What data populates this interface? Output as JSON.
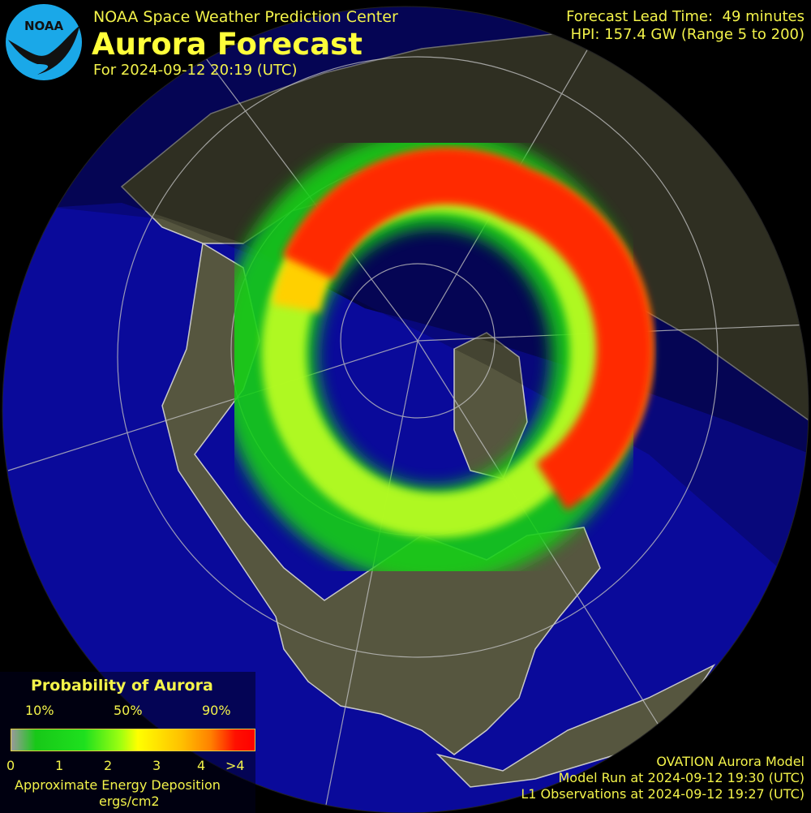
{
  "header": {
    "organization": "NOAA Space Weather Prediction Center",
    "title": "Aurora Forecast",
    "forecast_for": "For 2024-09-12 20:19 (UTC)",
    "logo_text": "NOAA",
    "lead_time": "Forecast Lead Time:  49 minutes",
    "hpi": "HPI: 157.4 GW (Range 5 to 200)"
  },
  "legend": {
    "title": "Probability of Aurora",
    "percent_labels": [
      "10%",
      "50%",
      "90%"
    ],
    "energy_ticks": [
      "0",
      "1",
      "2",
      "3",
      "4",
      ">4"
    ],
    "energy_label": "Approximate Energy Deposition",
    "energy_units": "ergs/cm2"
  },
  "footer": {
    "model": "OVATION Aurora Model",
    "model_run": "Model Run at 2024-09-12 19:30 (UTC)",
    "observations": "L1 Observations at 2024-09-12 19:27 (UTC)"
  },
  "colors": {
    "ocean": "#0a0a9a",
    "land": "#55553f",
    "text": "#f3f34a",
    "logo": "#1aa8e8",
    "aurora_low": "#18c818",
    "aurora_mid": "#ffff00",
    "aurora_high": "#ff2a00"
  }
}
